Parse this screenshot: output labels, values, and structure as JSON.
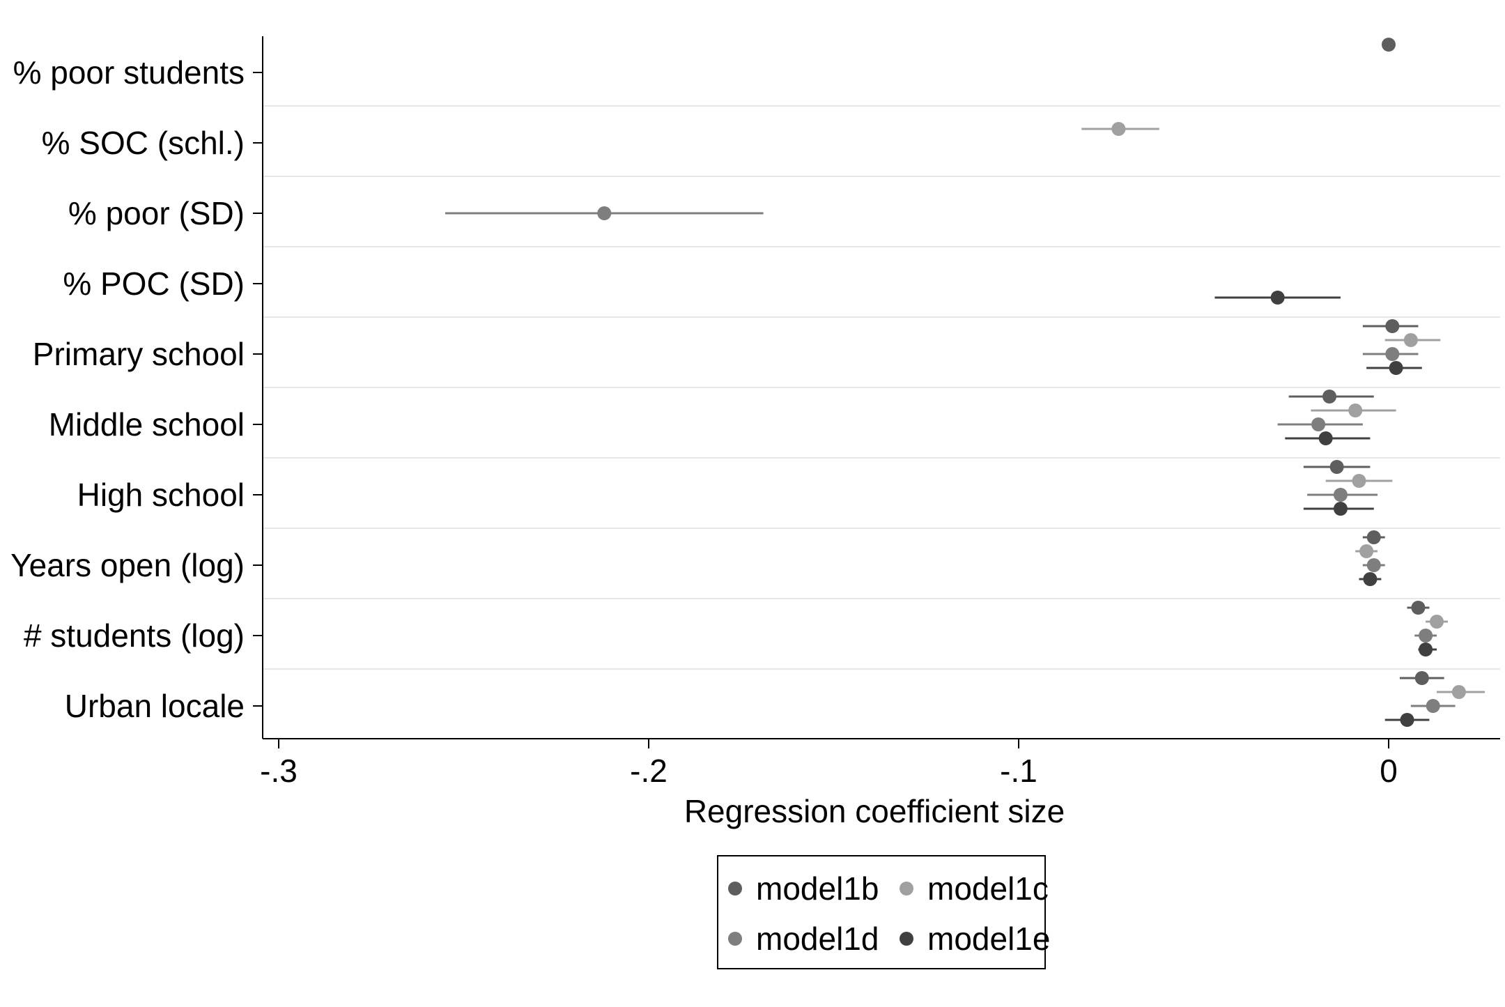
{
  "chart_data": {
    "type": "scatter",
    "subtype": "coefficient-plot",
    "title": "",
    "xlabel": "Regression coefficient size",
    "ylabel": "",
    "xlim": [
      -0.305,
      0.03
    ],
    "xticks": [
      {
        "value": -0.3,
        "label": "-.3"
      },
      {
        "value": -0.2,
        "label": "-.2"
      },
      {
        "value": -0.1,
        "label": "-.1"
      },
      {
        "value": 0,
        "label": "0"
      }
    ],
    "grid": "horizontal",
    "legend_position": "bottom",
    "categories": [
      "% poor students",
      "% SOC (schl.)",
      "% poor (SD)",
      "% POC (SD)",
      "Primary school",
      "Middle school",
      "High school",
      "Years open (log)",
      "# students (log)",
      "Urban locale"
    ],
    "series": [
      {
        "name": "model1b",
        "color": "#5e5e5e",
        "points": [
          {
            "category": "% poor students",
            "x": 0.0,
            "ci": [
              0.0,
              0.0
            ]
          },
          {
            "category": "Primary school",
            "x": 0.001,
            "ci": [
              -0.007,
              0.008
            ]
          },
          {
            "category": "Middle school",
            "x": -0.016,
            "ci": [
              -0.027,
              -0.004
            ]
          },
          {
            "category": "High school",
            "x": -0.014,
            "ci": [
              -0.023,
              -0.005
            ]
          },
          {
            "category": "Years open (log)",
            "x": -0.004,
            "ci": [
              -0.007,
              -0.001
            ]
          },
          {
            "category": "# students (log)",
            "x": 0.008,
            "ci": [
              0.005,
              0.011
            ]
          },
          {
            "category": "Urban locale",
            "x": 0.009,
            "ci": [
              0.003,
              0.015
            ]
          }
        ]
      },
      {
        "name": "model1c",
        "color": "#a0a0a0",
        "points": [
          {
            "category": "% SOC (schl.)",
            "x": -0.073,
            "ci": [
              -0.083,
              -0.062
            ]
          },
          {
            "category": "Primary school",
            "x": 0.006,
            "ci": [
              -0.001,
              0.014
            ]
          },
          {
            "category": "Middle school",
            "x": -0.009,
            "ci": [
              -0.021,
              0.002
            ]
          },
          {
            "category": "High school",
            "x": -0.008,
            "ci": [
              -0.017,
              0.001
            ]
          },
          {
            "category": "Years open (log)",
            "x": -0.006,
            "ci": [
              -0.009,
              -0.003
            ]
          },
          {
            "category": "# students (log)",
            "x": 0.013,
            "ci": [
              0.01,
              0.016
            ]
          },
          {
            "category": "Urban locale",
            "x": 0.019,
            "ci": [
              0.013,
              0.026
            ]
          }
        ]
      },
      {
        "name": "model1d",
        "color": "#7e7e7e",
        "points": [
          {
            "category": "% poor (SD)",
            "x": -0.212,
            "ci": [
              -0.255,
              -0.169
            ]
          },
          {
            "category": "Primary school",
            "x": 0.001,
            "ci": [
              -0.007,
              0.008
            ]
          },
          {
            "category": "Middle school",
            "x": -0.019,
            "ci": [
              -0.03,
              -0.007
            ]
          },
          {
            "category": "High school",
            "x": -0.013,
            "ci": [
              -0.022,
              -0.003
            ]
          },
          {
            "category": "Years open (log)",
            "x": -0.004,
            "ci": [
              -0.007,
              -0.001
            ]
          },
          {
            "category": "# students (log)",
            "x": 0.01,
            "ci": [
              0.007,
              0.013
            ]
          },
          {
            "category": "Urban locale",
            "x": 0.012,
            "ci": [
              0.006,
              0.018
            ]
          }
        ]
      },
      {
        "name": "model1e",
        "color": "#404040",
        "points": [
          {
            "category": "% POC (SD)",
            "x": -0.03,
            "ci": [
              -0.047,
              -0.013
            ]
          },
          {
            "category": "Primary school",
            "x": 0.002,
            "ci": [
              -0.006,
              0.009
            ]
          },
          {
            "category": "Middle school",
            "x": -0.017,
            "ci": [
              -0.028,
              -0.005
            ]
          },
          {
            "category": "High school",
            "x": -0.013,
            "ci": [
              -0.023,
              -0.004
            ]
          },
          {
            "category": "Years open (log)",
            "x": -0.005,
            "ci": [
              -0.008,
              -0.002
            ]
          },
          {
            "category": "# students (log)",
            "x": 0.01,
            "ci": [
              0.008,
              0.013
            ]
          },
          {
            "category": "Urban locale",
            "x": 0.005,
            "ci": [
              -0.001,
              0.011
            ]
          }
        ]
      }
    ]
  }
}
